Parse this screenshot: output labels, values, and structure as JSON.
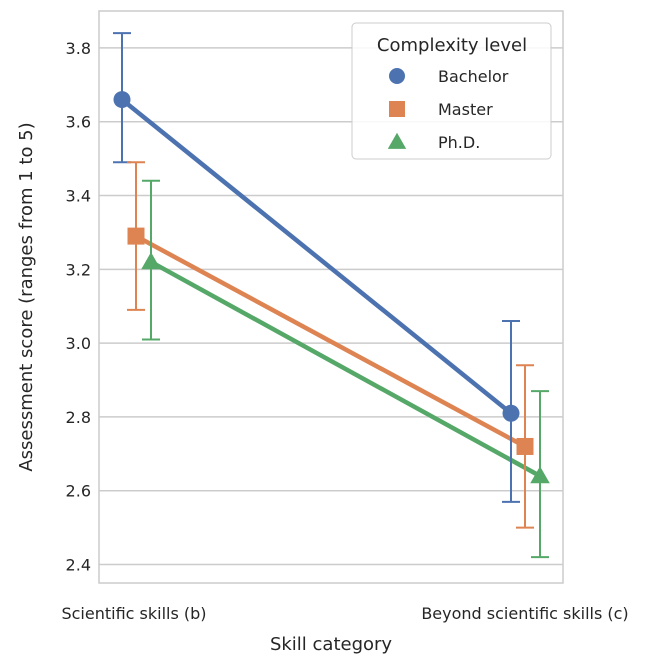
{
  "chart_data": {
    "type": "line",
    "categories": [
      "Scientific skills (b)",
      "Beyond scientific skills (c)"
    ],
    "xlabel": "Skill category",
    "ylabel": "Assessment score (ranges from 1 to 5)",
    "ylim": [
      2.35,
      3.9
    ],
    "yticks": [
      "2.4",
      "2.6",
      "2.8",
      "3.0",
      "3.2",
      "3.4",
      "3.6",
      "3.8"
    ],
    "grid": true,
    "legend": {
      "title": "Complexity level",
      "placement": "top-right"
    },
    "series": [
      {
        "name": "Bachelor",
        "marker": "circle",
        "color": "#4c72b0",
        "values": [
          3.66,
          2.81
        ],
        "ci_low": [
          3.49,
          2.57
        ],
        "ci_high": [
          3.84,
          3.06
        ]
      },
      {
        "name": "Master",
        "marker": "square",
        "color": "#dd8452",
        "values": [
          3.29,
          2.72
        ],
        "ci_low": [
          3.09,
          2.5
        ],
        "ci_high": [
          3.49,
          2.94
        ]
      },
      {
        "name": "Ph.D.",
        "marker": "triangle",
        "color": "#55a868",
        "values": [
          3.22,
          2.64
        ],
        "ci_low": [
          3.01,
          2.42
        ],
        "ci_high": [
          3.44,
          2.87
        ]
      }
    ]
  }
}
